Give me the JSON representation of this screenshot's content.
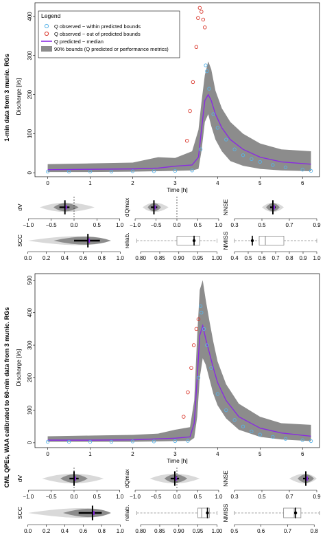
{
  "colors": {
    "within": "#5ab4e8",
    "out": "#d9362b",
    "median": "#8a2be2",
    "bounds": "#8c8c8c",
    "boxfill": "#ffffff"
  },
  "legend": {
    "title": "Legend",
    "within": "Q observed − within predicted bounds",
    "out": "Q observed − out of predicted bounds",
    "median": "Q predicted − median",
    "bounds": "90% bounds (Q predicted or performance metrics)"
  },
  "chart_data": [
    {
      "type": "line",
      "panel_label": "1-min data from 3 munic. RGs",
      "xlabel": "Time [h]",
      "ylabel": "Discharge [l/s]",
      "xlim": [
        -0.3,
        6.4
      ],
      "ylim": [
        -10,
        435
      ],
      "xticks": [
        0,
        1,
        2,
        3,
        4,
        5,
        6
      ],
      "yticks": [
        0,
        100,
        200,
        300,
        400
      ],
      "median": {
        "x": [
          0,
          1,
          2,
          2.6,
          3,
          3.4,
          3.55,
          3.62,
          3.7,
          3.78,
          3.85,
          3.95,
          4.1,
          4.3,
          4.6,
          5,
          5.5,
          6.2
        ],
        "y": [
          8,
          9,
          10,
          12,
          17,
          20,
          40,
          110,
          185,
          200,
          185,
          150,
          115,
          85,
          60,
          40,
          28,
          22
        ]
      },
      "upper": {
        "x": [
          0,
          1,
          2,
          2.6,
          3,
          3.4,
          3.55,
          3.62,
          3.7,
          3.78,
          3.85,
          3.95,
          4.1,
          4.3,
          4.6,
          5,
          5.5,
          6.2
        ],
        "y": [
          22,
          24,
          26,
          40,
          38,
          55,
          110,
          180,
          250,
          285,
          265,
          210,
          165,
          130,
          100,
          75,
          60,
          55
        ]
      },
      "lower": {
        "x": [
          0,
          1,
          2,
          2.6,
          3,
          3.4,
          3.55,
          3.62,
          3.7,
          3.78,
          3.85,
          3.95,
          4.1,
          4.3,
          4.6,
          5,
          5.5,
          6.2
        ],
        "y": [
          2,
          2,
          3,
          4,
          5,
          6,
          10,
          55,
          130,
          150,
          120,
          85,
          55,
          30,
          18,
          10,
          6,
          4
        ]
      },
      "within": {
        "x": [
          0,
          0.5,
          1,
          1.5,
          2,
          2.5,
          3,
          3.4,
          3.6,
          3.72,
          3.75,
          3.8,
          3.9,
          4.0,
          4.2,
          4.4,
          4.6,
          4.8,
          5.0,
          5.3,
          5.6,
          6.0,
          6.2
        ],
        "y": [
          3,
          3,
          3,
          3,
          4,
          4,
          5,
          6,
          60,
          275,
          260,
          215,
          150,
          115,
          85,
          60,
          45,
          35,
          28,
          20,
          14,
          8,
          5
        ]
      },
      "out": {
        "x": [
          3.28,
          3.35,
          3.42,
          3.5,
          3.54,
          3.58,
          3.62,
          3.66,
          3.7
        ],
        "y": [
          82,
          158,
          232,
          322,
          396,
          422,
          412,
          392,
          372
        ]
      }
    },
    {
      "type": "line",
      "panel_label": "CML QPEs, WAA calibrated to 60-min data from 3 munic. RGs",
      "xlabel": "Time [h]",
      "ylabel": "Discharge [l/s]",
      "xlim": [
        -0.3,
        6.4
      ],
      "ylim": [
        -15,
        520
      ],
      "xticks": [
        0,
        1,
        2,
        3,
        4,
        5,
        6
      ],
      "yticks": [
        0,
        100,
        200,
        300,
        400,
        500
      ],
      "median": {
        "x": [
          0,
          1,
          2,
          2.6,
          3,
          3.35,
          3.45,
          3.52,
          3.58,
          3.65,
          3.72,
          3.8,
          3.9,
          4.0,
          4.2,
          4.5,
          5,
          5.5,
          6.2
        ],
        "y": [
          8,
          8,
          9,
          12,
          14,
          18,
          60,
          200,
          330,
          360,
          320,
          280,
          230,
          185,
          130,
          80,
          45,
          30,
          20
        ]
      },
      "upper": {
        "x": [
          0,
          1,
          2,
          2.6,
          3,
          3.35,
          3.45,
          3.52,
          3.58,
          3.65,
          3.72,
          3.8,
          3.9,
          4.0,
          4.2,
          4.5,
          5,
          5.5,
          6.2
        ],
        "y": [
          20,
          22,
          24,
          28,
          40,
          48,
          130,
          330,
          470,
          500,
          440,
          380,
          310,
          250,
          180,
          120,
          80,
          60,
          55
        ]
      },
      "lower": {
        "x": [
          0,
          1,
          2,
          2.6,
          3,
          3.35,
          3.45,
          3.52,
          3.58,
          3.65,
          3.72,
          3.8,
          3.9,
          4.0,
          4.2,
          4.5,
          5,
          5.5,
          6.2
        ],
        "y": [
          3,
          3,
          3,
          4,
          5,
          6,
          15,
          80,
          200,
          260,
          240,
          200,
          150,
          115,
          75,
          40,
          18,
          10,
          5
        ]
      },
      "within": {
        "x": [
          0,
          0.5,
          1,
          1.5,
          2,
          2.5,
          3,
          3.3,
          3.55,
          3.6,
          3.62,
          3.68,
          3.75,
          3.85,
          4.0,
          4.2,
          4.4,
          4.6,
          4.8,
          5.0,
          5.3,
          5.6,
          6.0,
          6.2
        ],
        "y": [
          3,
          3,
          3,
          3,
          4,
          4,
          5,
          6,
          200,
          420,
          400,
          350,
          300,
          230,
          150,
          100,
          70,
          50,
          35,
          25,
          18,
          12,
          8,
          5
        ]
      },
      "out": {
        "x": [
          3.2,
          3.3,
          3.38,
          3.44,
          3.5,
          3.55
        ],
        "y": [
          80,
          155,
          230,
          300,
          350,
          380
        ]
      }
    },
    {
      "type": "violin",
      "label": "dV",
      "xlim": [
        -1.05,
        1.05
      ],
      "xticks": [
        -1.0,
        -0.5,
        0.0,
        0.5,
        1.0
      ],
      "ref": 0.0,
      "median": -0.2,
      "center": -0.2,
      "iqr": [
        -0.32,
        -0.1
      ],
      "range": [
        -0.75,
        0.45
      ],
      "core": [
        -0.45,
        0.1
      ]
    },
    {
      "type": "violin",
      "label": "dQmax",
      "xlim": [
        -1.05,
        1.05
      ],
      "xticks": [
        -1.0,
        -0.5,
        0.0,
        0.5,
        1.0
      ],
      "ref": 0.0,
      "median": -0.55,
      "center": -0.55,
      "iqr": [
        -0.62,
        -0.47
      ],
      "range": [
        -0.82,
        -0.2
      ],
      "core": [
        -0.7,
        -0.38
      ]
    },
    {
      "type": "violin",
      "label": "NNSE",
      "xlim": [
        0.28,
        0.92
      ],
      "xticks": [
        0.3,
        0.5,
        0.7,
        0.9
      ],
      "median": 0.58,
      "center": 0.58,
      "iqr": [
        0.56,
        0.6
      ],
      "range": [
        0.5,
        0.66
      ],
      "core": [
        0.53,
        0.63
      ]
    },
    {
      "type": "violin",
      "label": "SCC",
      "xlim": [
        -0.02,
        1.02
      ],
      "xticks": [
        0.0,
        0.2,
        0.4,
        0.6,
        0.8,
        1.0
      ],
      "median": 0.65,
      "center": 0.65,
      "iqr": [
        0.5,
        0.78
      ],
      "range": [
        0.0,
        0.9
      ],
      "core": [
        0.28,
        0.9
      ]
    },
    {
      "type": "box",
      "label": "reliab.",
      "xlim": [
        0.78,
        1.01
      ],
      "xticks": [
        0.8,
        0.85,
        0.9,
        0.95,
        1.0
      ],
      "q1": 0.895,
      "median": 0.94,
      "q3": 0.955,
      "whisk": [
        0.79,
        1.0
      ],
      "point": 0.94
    },
    {
      "type": "box",
      "label": "NMISS",
      "xlim": [
        0.38,
        1.02
      ],
      "xticks": [
        0.4,
        0.5,
        0.6,
        0.7,
        0.8,
        0.9,
        1.0
      ],
      "q1": 0.58,
      "median": 0.625,
      "q3": 0.76,
      "whisk": [
        0.4,
        1.0
      ],
      "point": 0.53
    },
    {
      "type": "violin",
      "label": "dV",
      "xlim": [
        -1.05,
        1.05
      ],
      "xticks": [
        -1.0,
        -0.5,
        0.0,
        0.5,
        1.0
      ],
      "ref": 0.0,
      "median": 0.0,
      "center": 0.0,
      "iqr": [
        -0.1,
        0.1
      ],
      "range": [
        -0.7,
        0.65
      ],
      "core": [
        -0.3,
        0.3
      ]
    },
    {
      "type": "violin",
      "label": "dQmax",
      "xlim": [
        -1.05,
        1.05
      ],
      "xticks": [
        -1.0,
        -0.5,
        0.0,
        0.5,
        1.0
      ],
      "ref": 0.0,
      "median": -0.05,
      "center": -0.05,
      "iqr": [
        -0.15,
        0.05
      ],
      "range": [
        -0.65,
        0.55
      ],
      "core": [
        -0.3,
        0.25
      ]
    },
    {
      "type": "violin",
      "label": "NNSE",
      "xlim": [
        0.28,
        0.92
      ],
      "xticks": [
        0.3,
        0.5,
        0.7,
        0.9
      ],
      "median": 0.82,
      "center": 0.82,
      "iqr": [
        0.8,
        0.84
      ],
      "range": [
        0.7,
        0.9
      ],
      "core": [
        0.76,
        0.88
      ]
    },
    {
      "type": "violin",
      "label": "SCC",
      "xlim": [
        -0.02,
        1.02
      ],
      "xticks": [
        0.0,
        0.2,
        0.4,
        0.6,
        0.8,
        1.0
      ],
      "median": 0.7,
      "center": 0.7,
      "iqr": [
        0.55,
        0.8
      ],
      "range": [
        0.0,
        0.9
      ],
      "core": [
        0.38,
        0.9
      ]
    },
    {
      "type": "box",
      "label": "reliab.",
      "xlim": [
        0.78,
        1.01
      ],
      "xticks": [
        0.8,
        0.85,
        0.9,
        0.95,
        1.0
      ],
      "q1": 0.95,
      "median": 0.96,
      "q3": 0.98,
      "whisk": [
        0.79,
        1.0
      ],
      "point": 0.975
    },
    {
      "type": "box",
      "label": "NMISS",
      "xlim": [
        0.49,
        0.82
      ],
      "xticks": [
        0.5,
        0.6,
        0.7,
        0.8
      ],
      "q1": 0.685,
      "median": 0.725,
      "q3": 0.75,
      "whisk": [
        0.5,
        0.82
      ],
      "point": 0.73
    }
  ]
}
